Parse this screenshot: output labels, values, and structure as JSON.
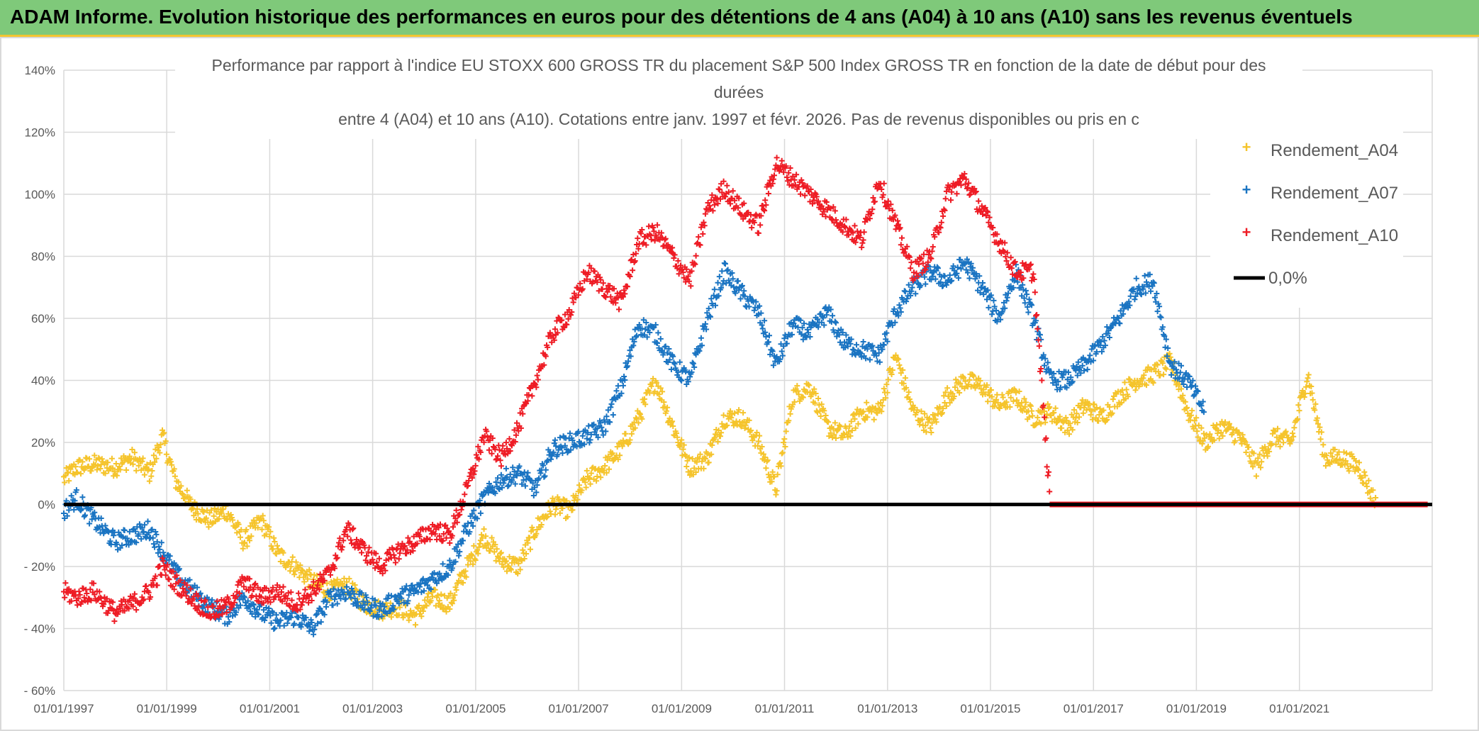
{
  "header": {
    "title": "ADAM Informe. Evolution historique des performances en euros pour des détentions de 4 ans (A04) à 10 ans (A10) sans les revenus éventuels"
  },
  "chart_data": {
    "type": "scatter",
    "title_lines": [
      "Performance par rapport à l'indice EU STOXX 600 GROSS TR  du placement S&P 500 Index GROSS TR en fonction de la date de début pour des",
      "durées",
      "entre 4 (A04) et 10 ans (A10). Cotations entre janv. 1997 et févr. 2026. Pas de revenus disponibles ou pris en c"
    ],
    "xlabel": "",
    "ylabel": "",
    "ylim": [
      -60,
      140
    ],
    "y_ticks": [
      "140%",
      "120%",
      "100%",
      "80%",
      "60%",
      "40%",
      "20%",
      "0%",
      "- 20%",
      "- 40%",
      "- 60%"
    ],
    "x_ticks": [
      "01/01/1997",
      "01/01/1999",
      "01/01/2001",
      "01/01/2003",
      "01/01/2005",
      "01/01/2007",
      "01/01/2009",
      "01/01/2011",
      "01/01/2013",
      "01/01/2015",
      "01/01/2017",
      "01/01/2019",
      "01/01/2021"
    ],
    "xlim": [
      "1997-01-01",
      "2023-08-01"
    ],
    "grid": true,
    "legend_position": "top-right",
    "series": [
      {
        "name": "Rendement_A04",
        "color": "#f5c42c",
        "marker": "plus",
        "points": [
          [
            "1997-01",
            8
          ],
          [
            "1997-04",
            12
          ],
          [
            "1997-08",
            13
          ],
          [
            "1998-01",
            12
          ],
          [
            "1998-05",
            15
          ],
          [
            "1998-09",
            10
          ],
          [
            "1998-12",
            22
          ],
          [
            "1999-03",
            8
          ],
          [
            "1999-07",
            -1
          ],
          [
            "1999-11",
            -5
          ],
          [
            "2000-03",
            -2
          ],
          [
            "2000-07",
            -12
          ],
          [
            "2000-11",
            -5
          ],
          [
            "2001-03",
            -16
          ],
          [
            "2001-07",
            -20
          ],
          [
            "2001-11",
            -25
          ],
          [
            "2002-03",
            -28
          ],
          [
            "2002-07",
            -26
          ],
          [
            "2002-11",
            -32
          ],
          [
            "2003-03",
            -34
          ],
          [
            "2003-07",
            -33
          ],
          [
            "2003-11",
            -36
          ],
          [
            "2004-03",
            -30
          ],
          [
            "2004-07",
            -32
          ],
          [
            "2004-11",
            -20
          ],
          [
            "2005-03",
            -10
          ],
          [
            "2005-07",
            -18
          ],
          [
            "2005-11",
            -20
          ],
          [
            "2006-03",
            -8
          ],
          [
            "2006-07",
            0
          ],
          [
            "2006-11",
            -2
          ],
          [
            "2007-03",
            8
          ],
          [
            "2007-07",
            12
          ],
          [
            "2007-11",
            18
          ],
          [
            "2008-03",
            28
          ],
          [
            "2008-07",
            40
          ],
          [
            "2008-11",
            25
          ],
          [
            "2009-03",
            12
          ],
          [
            "2009-07",
            15
          ],
          [
            "2009-11",
            28
          ],
          [
            "2010-03",
            28
          ],
          [
            "2010-07",
            20
          ],
          [
            "2010-11",
            5
          ],
          [
            "2011-03",
            35
          ],
          [
            "2011-07",
            38
          ],
          [
            "2011-11",
            25
          ],
          [
            "2012-03",
            22
          ],
          [
            "2012-07",
            30
          ],
          [
            "2012-11",
            30
          ],
          [
            "2013-03",
            48
          ],
          [
            "2013-07",
            30
          ],
          [
            "2013-11",
            25
          ],
          [
            "2014-03",
            35
          ],
          [
            "2014-07",
            40
          ],
          [
            "2014-11",
            38
          ],
          [
            "2015-03",
            32
          ],
          [
            "2015-07",
            35
          ],
          [
            "2015-11",
            28
          ],
          [
            "2016-03",
            30
          ],
          [
            "2016-07",
            25
          ],
          [
            "2016-11",
            32
          ],
          [
            "2017-03",
            28
          ],
          [
            "2017-07",
            35
          ],
          [
            "2017-11",
            40
          ],
          [
            "2018-03",
            42
          ],
          [
            "2018-07",
            46
          ],
          [
            "2018-11",
            30
          ],
          [
            "2019-03",
            20
          ],
          [
            "2019-07",
            25
          ],
          [
            "2019-11",
            22
          ],
          [
            "2020-03",
            12
          ],
          [
            "2020-07",
            22
          ],
          [
            "2020-11",
            20
          ],
          [
            "2021-03",
            42
          ],
          [
            "2021-07",
            15
          ],
          [
            "2021-11",
            15
          ],
          [
            "2022-03",
            12
          ],
          [
            "2022-07",
            0
          ],
          [
            "2023-07",
            0
          ]
        ]
      },
      {
        "name": "Rendement_A07",
        "color": "#1a74c2",
        "marker": "plus",
        "points": [
          [
            "1997-01",
            -2
          ],
          [
            "1997-04",
            2
          ],
          [
            "1997-08",
            -5
          ],
          [
            "1998-01",
            -12
          ],
          [
            "1998-05",
            -10
          ],
          [
            "1998-09",
            -8
          ],
          [
            "1998-12",
            -15
          ],
          [
            "1999-03",
            -22
          ],
          [
            "1999-07",
            -28
          ],
          [
            "1999-11",
            -33
          ],
          [
            "2000-03",
            -36
          ],
          [
            "2000-07",
            -30
          ],
          [
            "2000-11",
            -35
          ],
          [
            "2001-03",
            -38
          ],
          [
            "2001-07",
            -36
          ],
          [
            "2001-11",
            -40
          ],
          [
            "2002-03",
            -30
          ],
          [
            "2002-07",
            -28
          ],
          [
            "2002-11",
            -32
          ],
          [
            "2003-03",
            -34
          ],
          [
            "2003-07",
            -30
          ],
          [
            "2003-11",
            -28
          ],
          [
            "2004-03",
            -24
          ],
          [
            "2004-07",
            -20
          ],
          [
            "2004-11",
            -8
          ],
          [
            "2005-03",
            2
          ],
          [
            "2005-07",
            8
          ],
          [
            "2005-11",
            10
          ],
          [
            "2006-03",
            5
          ],
          [
            "2006-07",
            18
          ],
          [
            "2006-11",
            20
          ],
          [
            "2007-03",
            22
          ],
          [
            "2007-07",
            25
          ],
          [
            "2007-11",
            38
          ],
          [
            "2008-03",
            58
          ],
          [
            "2008-07",
            55
          ],
          [
            "2008-11",
            45
          ],
          [
            "2009-03",
            40
          ],
          [
            "2009-07",
            60
          ],
          [
            "2009-11",
            75
          ],
          [
            "2010-03",
            68
          ],
          [
            "2010-07",
            62
          ],
          [
            "2010-11",
            45
          ],
          [
            "2011-03",
            58
          ],
          [
            "2011-07",
            55
          ],
          [
            "2011-11",
            62
          ],
          [
            "2012-03",
            52
          ],
          [
            "2012-07",
            50
          ],
          [
            "2012-11",
            48
          ],
          [
            "2013-03",
            62
          ],
          [
            "2013-07",
            70
          ],
          [
            "2013-11",
            75
          ],
          [
            "2014-03",
            72
          ],
          [
            "2014-07",
            78
          ],
          [
            "2014-11",
            70
          ],
          [
            "2015-03",
            60
          ],
          [
            "2015-07",
            75
          ],
          [
            "2015-11",
            60
          ],
          [
            "2016-03",
            40
          ],
          [
            "2016-07",
            40
          ],
          [
            "2016-11",
            45
          ],
          [
            "2017-03",
            52
          ],
          [
            "2017-07",
            60
          ],
          [
            "2017-11",
            70
          ],
          [
            "2018-03",
            72
          ],
          [
            "2018-07",
            45
          ],
          [
            "2018-11",
            40
          ],
          [
            "2019-03",
            30
          ]
        ]
      },
      {
        "name": "Rendement_A10",
        "color": "#ee1c25",
        "marker": "plus",
        "points": [
          [
            "1997-01",
            -28
          ],
          [
            "1997-04",
            -30
          ],
          [
            "1997-08",
            -28
          ],
          [
            "1998-01",
            -35
          ],
          [
            "1998-05",
            -32
          ],
          [
            "1998-09",
            -28
          ],
          [
            "1998-12",
            -20
          ],
          [
            "1999-03",
            -25
          ],
          [
            "1999-07",
            -30
          ],
          [
            "1999-11",
            -35
          ],
          [
            "2000-03",
            -33
          ],
          [
            "2000-07",
            -25
          ],
          [
            "2000-11",
            -30
          ],
          [
            "2001-03",
            -28
          ],
          [
            "2001-07",
            -32
          ],
          [
            "2001-11",
            -28
          ],
          [
            "2002-03",
            -22
          ],
          [
            "2002-07",
            -8
          ],
          [
            "2002-11",
            -15
          ],
          [
            "2003-03",
            -20
          ],
          [
            "2003-07",
            -15
          ],
          [
            "2003-11",
            -12
          ],
          [
            "2004-03",
            -8
          ],
          [
            "2004-07",
            -10
          ],
          [
            "2004-11",
            5
          ],
          [
            "2005-03",
            22
          ],
          [
            "2005-07",
            15
          ],
          [
            "2005-11",
            25
          ],
          [
            "2006-03",
            40
          ],
          [
            "2006-07",
            55
          ],
          [
            "2006-11",
            62
          ],
          [
            "2007-03",
            75
          ],
          [
            "2007-07",
            70
          ],
          [
            "2007-11",
            65
          ],
          [
            "2008-03",
            85
          ],
          [
            "2008-07",
            88
          ],
          [
            "2008-11",
            80
          ],
          [
            "2009-03",
            72
          ],
          [
            "2009-07",
            95
          ],
          [
            "2009-11",
            102
          ],
          [
            "2010-03",
            95
          ],
          [
            "2010-07",
            90
          ],
          [
            "2010-11",
            110
          ],
          [
            "2011-03",
            105
          ],
          [
            "2011-07",
            100
          ],
          [
            "2011-11",
            95
          ],
          [
            "2012-03",
            90
          ],
          [
            "2012-07",
            85
          ],
          [
            "2012-11",
            105
          ],
          [
            "2013-03",
            90
          ],
          [
            "2013-07",
            75
          ],
          [
            "2013-11",
            80
          ],
          [
            "2014-03",
            100
          ],
          [
            "2014-07",
            105
          ],
          [
            "2014-11",
            95
          ],
          [
            "2015-03",
            85
          ],
          [
            "2015-07",
            75
          ],
          [
            "2015-11",
            75
          ],
          [
            "2016-03",
            0
          ],
          [
            "2023-07",
            0
          ]
        ]
      }
    ],
    "reference_line": {
      "name": "0,0%",
      "value": 0,
      "color": "#000000"
    }
  }
}
